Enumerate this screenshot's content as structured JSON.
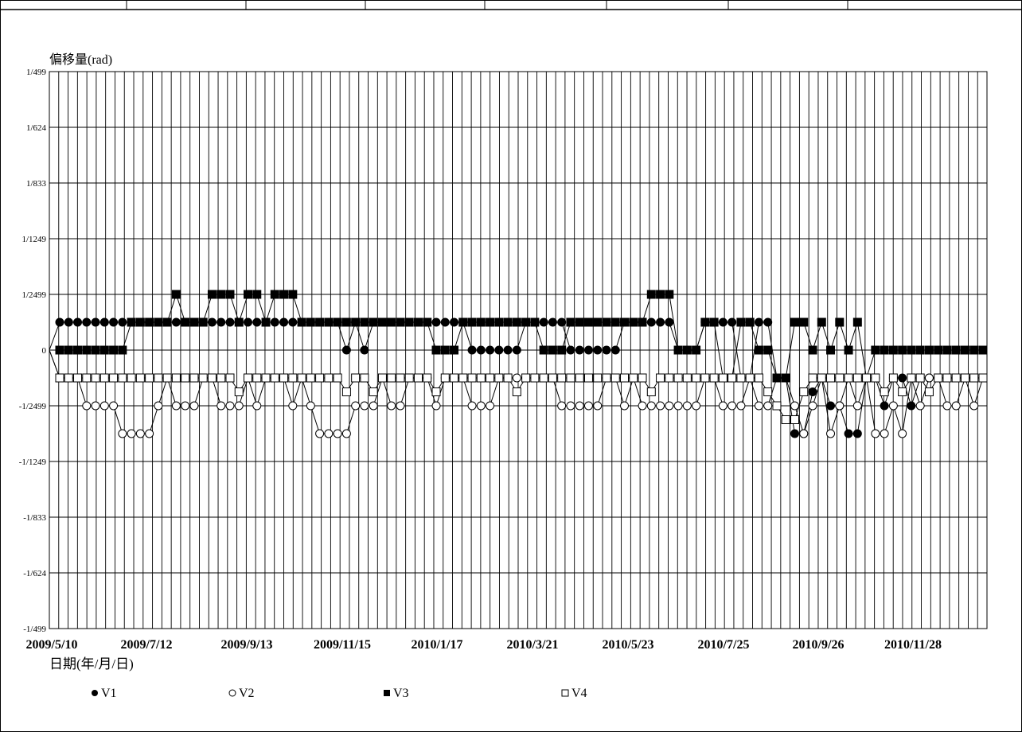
{
  "chart_data": {
    "type": "line",
    "title": "",
    "ylabel": "偏移量(rad)",
    "xlabel": "日期(年/月/日)",
    "x_tick_labels": [
      "2009/5/10",
      "2009/7/12",
      "2009/9/13",
      "2009/11/15",
      "2010/1/17",
      "2010/3/21",
      "2010/5/23",
      "2010/7/25",
      "2010/9/26",
      "2010/11/28"
    ],
    "y_ticks": [
      {
        "label": "1/499",
        "value": 1
      },
      {
        "label": "1/624",
        "value": 0.8
      },
      {
        "label": "1/833",
        "value": 0.6
      },
      {
        "label": "1/1249",
        "value": 0.4
      },
      {
        "label": "1/2499",
        "value": 0.2
      },
      {
        "label": "0",
        "value": 0
      },
      {
        "label": "-1/2499",
        "value": -0.2
      },
      {
        "label": "-1/1249",
        "value": -0.4
      },
      {
        "label": "-1/833",
        "value": -0.6
      },
      {
        "label": "-1/624",
        "value": -0.8
      },
      {
        "label": "-1/499",
        "value": -1
      }
    ],
    "ylim": [
      -1,
      1
    ],
    "grid": true,
    "legend_placement": "bottom",
    "series": [
      {
        "name": "V1",
        "marker": "filled-circle",
        "values": [
          0.1,
          0.1,
          0.1,
          0.1,
          0.1,
          0.1,
          0.1,
          0.1,
          0.1,
          0.1,
          0.1,
          0.1,
          0.1,
          0.1,
          0.1,
          0.1,
          0.1,
          0.1,
          0.1,
          0.1,
          0.1,
          0.1,
          0.1,
          0.1,
          0.1,
          0.1,
          0.1,
          0.1,
          0.1,
          0.1,
          0.1,
          0.1,
          0,
          0.1,
          0,
          0.1,
          0.1,
          0.1,
          0.1,
          0.1,
          0.1,
          0.1,
          0.1,
          0.1,
          0.1,
          0.1,
          0,
          0,
          0,
          0,
          0,
          0,
          0.1,
          0.1,
          0.1,
          0.1,
          0.1,
          0,
          0,
          0,
          0,
          0,
          0,
          0.1,
          0.1,
          0.1,
          0.1,
          0.1,
          0.1,
          0,
          0,
          0,
          0.1,
          0.1,
          0.1,
          0.1,
          -0.1,
          -0.1,
          0.1,
          0.1,
          -0.1,
          -0.1,
          -0.3,
          -0.3,
          -0.15,
          -0.1,
          -0.2,
          -0.2,
          -0.3,
          -0.3,
          -0.1,
          -0.1,
          -0.2,
          -0.1,
          -0.1,
          -0.2,
          -0.1,
          -0.1,
          -0.1,
          -0.1,
          -0.1,
          -0.1,
          -0.1,
          -0.1
        ]
      },
      {
        "name": "V2",
        "marker": "open-circle",
        "values": [
          -0.1,
          -0.1,
          -0.1,
          -0.2,
          -0.2,
          -0.2,
          -0.2,
          -0.3,
          -0.3,
          -0.3,
          -0.3,
          -0.2,
          -0.1,
          -0.2,
          -0.2,
          -0.2,
          -0.1,
          -0.1,
          -0.2,
          -0.2,
          -0.2,
          -0.1,
          -0.2,
          -0.1,
          -0.1,
          -0.1,
          -0.2,
          -0.1,
          -0.2,
          -0.3,
          -0.3,
          -0.3,
          -0.3,
          -0.2,
          -0.2,
          -0.2,
          -0.1,
          -0.2,
          -0.2,
          -0.1,
          -0.1,
          -0.1,
          -0.2,
          -0.1,
          -0.1,
          -0.1,
          -0.2,
          -0.2,
          -0.2,
          -0.1,
          -0.1,
          -0.1,
          -0.1,
          -0.1,
          -0.1,
          -0.1,
          -0.2,
          -0.2,
          -0.2,
          -0.2,
          -0.2,
          -0.1,
          -0.1,
          -0.2,
          -0.1,
          -0.2,
          -0.2,
          -0.2,
          -0.2,
          -0.2,
          -0.2,
          -0.2,
          -0.1,
          -0.1,
          -0.2,
          -0.2,
          -0.2,
          -0.1,
          -0.2,
          -0.2,
          -0.1,
          -0.1,
          -0.2,
          -0.3,
          -0.2,
          -0.1,
          -0.3,
          -0.2,
          -0.1,
          -0.2,
          -0.1,
          -0.3,
          -0.3,
          -0.2,
          -0.3,
          -0.1,
          -0.2,
          -0.1,
          -0.1,
          -0.2,
          -0.2,
          -0.1,
          -0.2,
          -0.1
        ]
      },
      {
        "name": "V3",
        "marker": "filled-square",
        "values": [
          0,
          0,
          0,
          0,
          0,
          0,
          0,
          0,
          0.1,
          0.1,
          0.1,
          0.1,
          0.1,
          0.2,
          0.1,
          0.1,
          0.1,
          0.2,
          0.2,
          0.2,
          0.1,
          0.2,
          0.2,
          0.1,
          0.2,
          0.2,
          0.2,
          0.1,
          0.1,
          0.1,
          0.1,
          0.1,
          0.1,
          0.1,
          0.1,
          0.1,
          0.1,
          0.1,
          0.1,
          0.1,
          0.1,
          0.1,
          0,
          0,
          0,
          0.1,
          0.1,
          0.1,
          0.1,
          0.1,
          0.1,
          0.1,
          0.1,
          0.1,
          0,
          0,
          0,
          0.1,
          0.1,
          0.1,
          0.1,
          0.1,
          0.1,
          0.1,
          0.1,
          0.1,
          0.2,
          0.2,
          0.2,
          0,
          0,
          0,
          0.1,
          0.1,
          -0.1,
          -0.1,
          0.1,
          0.1,
          0,
          0,
          -0.1,
          -0.1,
          0.1,
          0.1,
          0,
          0.1,
          0,
          0.1,
          0,
          0.1,
          -0.1,
          0,
          0,
          0,
          0,
          0,
          0,
          0,
          0,
          0,
          0,
          0,
          0,
          0
        ]
      },
      {
        "name": "V4",
        "marker": "open-square",
        "values": [
          -0.1,
          -0.1,
          -0.1,
          -0.1,
          -0.1,
          -0.1,
          -0.1,
          -0.1,
          -0.1,
          -0.1,
          -0.1,
          -0.1,
          -0.1,
          -0.1,
          -0.1,
          -0.1,
          -0.1,
          -0.1,
          -0.1,
          -0.1,
          -0.15,
          -0.1,
          -0.1,
          -0.1,
          -0.1,
          -0.1,
          -0.1,
          -0.1,
          -0.1,
          -0.1,
          -0.1,
          -0.1,
          -0.15,
          -0.1,
          -0.1,
          -0.15,
          -0.1,
          -0.1,
          -0.1,
          -0.1,
          -0.1,
          -0.1,
          -0.15,
          -0.1,
          -0.1,
          -0.1,
          -0.1,
          -0.1,
          -0.1,
          -0.1,
          -0.1,
          -0.15,
          -0.1,
          -0.1,
          -0.1,
          -0.1,
          -0.1,
          -0.1,
          -0.1,
          -0.1,
          -0.1,
          -0.1,
          -0.1,
          -0.1,
          -0.1,
          -0.1,
          -0.15,
          -0.1,
          -0.1,
          -0.1,
          -0.1,
          -0.1,
          -0.1,
          -0.1,
          -0.1,
          -0.1,
          -0.1,
          -0.1,
          -0.1,
          -0.15,
          -0.2,
          -0.25,
          -0.25,
          -0.15,
          -0.1,
          -0.1,
          -0.1,
          -0.1,
          -0.1,
          -0.1,
          -0.1,
          -0.1,
          -0.15,
          -0.1,
          -0.15,
          -0.1,
          -0.1,
          -0.15,
          -0.1,
          -0.1,
          -0.1,
          -0.1,
          -0.1,
          -0.1
        ]
      }
    ]
  }
}
